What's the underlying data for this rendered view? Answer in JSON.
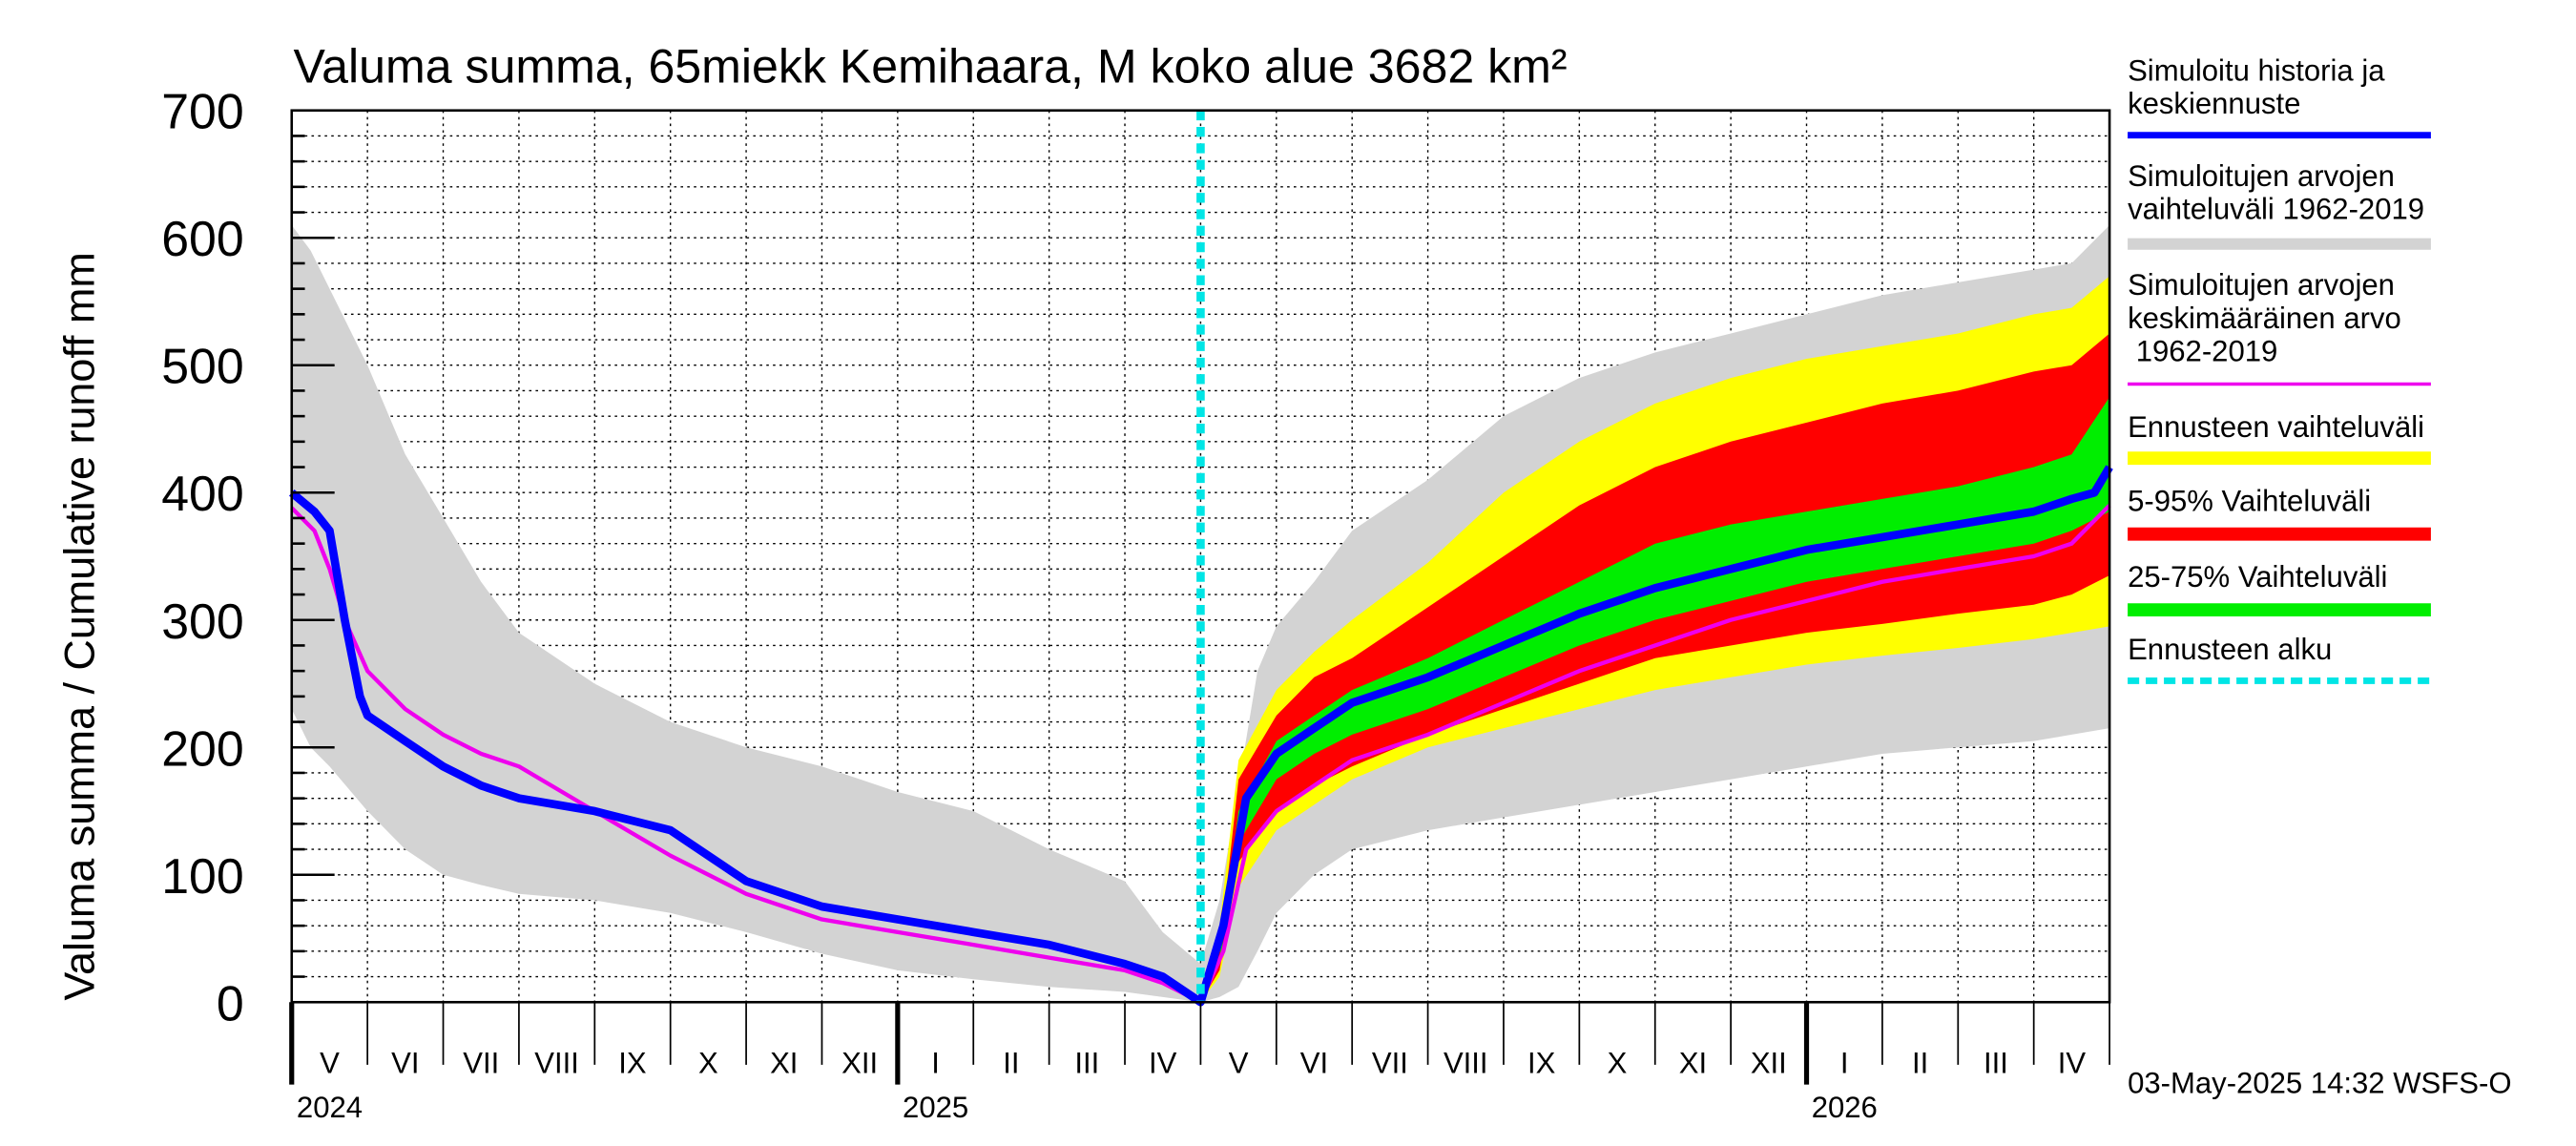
{
  "chart_data": {
    "type": "area",
    "title": "Valuma summa, 65miekk Kemihaara, M koko alue 3682 km²",
    "ylabel": "Valuma summa / Cumulative runoff    mm",
    "ylim": [
      0,
      700
    ],
    "yticks": [
      0,
      100,
      200,
      300,
      400,
      500,
      600,
      700
    ],
    "x_unit": "months since 2024-05-01",
    "xlim": [
      0,
      24
    ],
    "forecast_start": 12,
    "months": [
      "V",
      "VI",
      "VII",
      "VIII",
      "IX",
      "X",
      "XI",
      "XII",
      "I",
      "II",
      "III",
      "IV",
      "V",
      "VI",
      "VII",
      "VIII",
      "IX",
      "X",
      "XI",
      "XII",
      "I",
      "II",
      "III",
      "IV"
    ],
    "years": [
      {
        "label": "2024",
        "month": 0
      },
      {
        "label": "2025",
        "month": 8
      },
      {
        "label": "2026",
        "month": 20
      }
    ],
    "timestamp": "03-May-2025 14:32 WSFS-O",
    "colors": {
      "minmax": "#d3d3d3",
      "forecast_range": "#ffff00",
      "p5_95": "#ff0000",
      "p25_75": "#00ee00",
      "history": "#0000ff",
      "mean": "#ee00ee",
      "start": "#00e5e5"
    },
    "legend": [
      {
        "key": "history",
        "label": "Simuloitu historia ja keskiennuste"
      },
      {
        "key": "minmax",
        "label": "Simuloitujen arvojen vaihteluväli 1962-2019"
      },
      {
        "key": "mean",
        "label": "Simuloitujen arvojen keskimääräinen arvo    1962-2019"
      },
      {
        "key": "forecast_range",
        "label": "Ennusteen vaihteluväli"
      },
      {
        "key": "p5_95",
        "label": "5-95% Vaihteluväli"
      },
      {
        "key": "p25_75",
        "label": "25-75% Vaihteluväli"
      },
      {
        "key": "start",
        "label": "Ennusteen alku"
      }
    ],
    "series": {
      "minmax": {
        "x": [
          0,
          0.25,
          0.5,
          1,
          1.5,
          2,
          2.5,
          3,
          4,
          5,
          6,
          7,
          8,
          9,
          10,
          11,
          11.5,
          12,
          12.25,
          12.5,
          12.75,
          13,
          13.5,
          14,
          15,
          16,
          17,
          18,
          19,
          20,
          21,
          22,
          23,
          23.5,
          24
        ],
        "upper": [
          610,
          590,
          560,
          500,
          430,
          380,
          330,
          290,
          250,
          220,
          200,
          185,
          165,
          150,
          120,
          95,
          55,
          30,
          80,
          170,
          260,
          295,
          330,
          370,
          410,
          460,
          490,
          510,
          525,
          540,
          555,
          565,
          575,
          580,
          610
        ],
        "lower": [
          230,
          200,
          185,
          150,
          120,
          100,
          92,
          85,
          80,
          70,
          55,
          38,
          25,
          18,
          12,
          8,
          4,
          0,
          4,
          12,
          40,
          70,
          100,
          120,
          135,
          145,
          155,
          165,
          175,
          185,
          195,
          200,
          205,
          210,
          215
        ]
      },
      "forecast_range": {
        "x": [
          12,
          12.25,
          12.5,
          13,
          13.5,
          14,
          15,
          16,
          17,
          18,
          19,
          20,
          21,
          22,
          23,
          23.5,
          24
        ],
        "upper": [
          0,
          60,
          190,
          245,
          275,
          300,
          345,
          400,
          440,
          470,
          490,
          505,
          515,
          525,
          540,
          545,
          570
        ],
        "lower": [
          0,
          20,
          90,
          135,
          155,
          175,
          200,
          215,
          230,
          245,
          255,
          265,
          272,
          278,
          285,
          290,
          295
        ]
      },
      "p5_95": {
        "x": [
          12,
          12.25,
          12.5,
          13,
          13.5,
          14,
          15,
          16,
          17,
          18,
          19,
          20,
          21,
          22,
          23,
          23.5,
          24
        ],
        "upper": [
          0,
          40,
          175,
          225,
          255,
          270,
          310,
          350,
          390,
          420,
          440,
          455,
          470,
          480,
          495,
          500,
          525
        ],
        "lower": [
          0,
          25,
          110,
          150,
          170,
          185,
          210,
          230,
          250,
          270,
          280,
          290,
          297,
          305,
          312,
          320,
          335
        ]
      },
      "p25_75": {
        "x": [
          12,
          12.25,
          12.5,
          13,
          13.5,
          14,
          15,
          16,
          17,
          18,
          19,
          20,
          21,
          22,
          23,
          23.5,
          24
        ],
        "upper": [
          0,
          35,
          150,
          205,
          225,
          245,
          270,
          300,
          330,
          360,
          375,
          385,
          395,
          405,
          420,
          430,
          475
        ],
        "lower": [
          0,
          30,
          125,
          175,
          195,
          210,
          230,
          255,
          280,
          300,
          315,
          330,
          340,
          350,
          360,
          370,
          385
        ]
      },
      "history": {
        "x": [
          0,
          0.3,
          0.5,
          0.7,
          0.8,
          0.9,
          1.0,
          1.5,
          2,
          2.5,
          3,
          4,
          5,
          6,
          7,
          8,
          9,
          10,
          11,
          11.5,
          12,
          12.3,
          12.6,
          13,
          13.5,
          14,
          15,
          16,
          17,
          18,
          19,
          20,
          21,
          22,
          23,
          23.5,
          23.8,
          24
        ],
        "values": [
          400,
          385,
          370,
          300,
          270,
          240,
          225,
          205,
          185,
          170,
          160,
          150,
          135,
          95,
          75,
          65,
          55,
          45,
          30,
          20,
          0,
          60,
          160,
          195,
          215,
          235,
          255,
          280,
          305,
          325,
          340,
          355,
          365,
          375,
          385,
          395,
          400,
          420
        ]
      },
      "mean": {
        "x": [
          0,
          0.3,
          0.5,
          0.7,
          1.0,
          1.5,
          2,
          2.5,
          3,
          4,
          5,
          6,
          7,
          8,
          9,
          10,
          11,
          11.5,
          12,
          12.3,
          12.6,
          13,
          13.5,
          14,
          15,
          16,
          17,
          18,
          19,
          20,
          21,
          22,
          23,
          23.5,
          24
        ],
        "values": [
          388,
          370,
          340,
          300,
          260,
          230,
          210,
          195,
          185,
          150,
          115,
          85,
          65,
          55,
          45,
          35,
          25,
          15,
          0,
          40,
          120,
          150,
          170,
          190,
          210,
          235,
          260,
          280,
          300,
          315,
          330,
          340,
          350,
          360,
          390
        ]
      }
    }
  }
}
